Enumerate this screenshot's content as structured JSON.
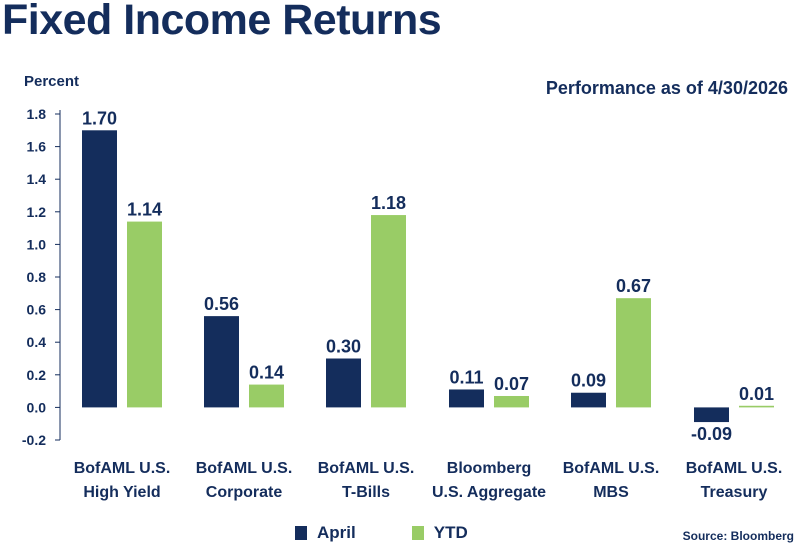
{
  "header": {
    "title": "Fixed Income Returns",
    "subtitle": "Performance as of 4/30/2026"
  },
  "source": "Source: Bloomberg",
  "colors": {
    "april": "#142d5c",
    "ytd": "#99cc66",
    "text": "#142d5c"
  },
  "chart_data": {
    "type": "bar",
    "title": "Fixed Income Returns",
    "subtitle": "Performance as of 4/30/2026",
    "ylabel": "Percent",
    "xlabel": "",
    "ylim": [
      -0.2,
      1.8
    ],
    "yticks": [
      "1.8",
      "1.6",
      "1.4",
      "1.2",
      "1.0",
      "0.8",
      "0.6",
      "0.4",
      "0.2",
      "0.0",
      "-0.2"
    ],
    "yticks_values": [
      1.8,
      1.6,
      1.4,
      1.2,
      1.0,
      0.8,
      0.6,
      0.4,
      0.2,
      0.0,
      -0.2
    ],
    "categories": [
      [
        "BofAML U.S.",
        "High Yield"
      ],
      [
        "BofAML U.S.",
        "Corporate"
      ],
      [
        "BofAML U.S.",
        "T-Bills"
      ],
      [
        "Bloomberg",
        "U.S. Aggregate"
      ],
      [
        "BofAML U.S.",
        "MBS"
      ],
      [
        "BofAML U.S.",
        "Treasury"
      ]
    ],
    "series": [
      {
        "name": "April",
        "values": [
          1.7,
          0.56,
          0.3,
          0.11,
          0.09,
          -0.09
        ],
        "labels": [
          "1.70",
          "0.56",
          "0.30",
          "0.11",
          "0.09",
          "-0.09"
        ]
      },
      {
        "name": "YTD",
        "values": [
          1.14,
          0.14,
          1.18,
          0.07,
          0.67,
          0.01
        ],
        "labels": [
          "1.14",
          "0.14",
          "1.18",
          "0.07",
          "0.67",
          "0.01"
        ]
      }
    ],
    "legend": "bottom",
    "grid": false
  }
}
